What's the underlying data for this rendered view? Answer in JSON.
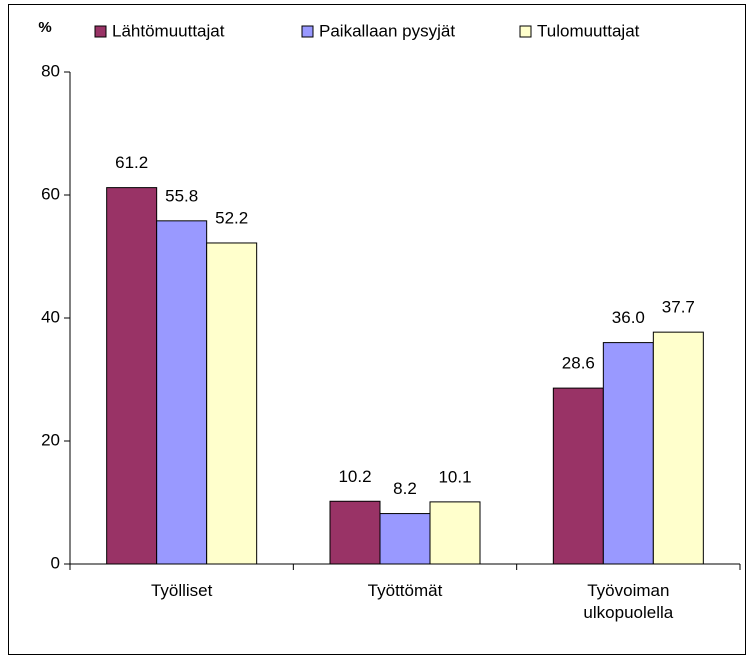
{
  "chart_data": {
    "type": "bar",
    "y_label": "%",
    "categories": [
      "Työlliset",
      "Työttömät",
      "Työvoiman ulkopuolella"
    ],
    "series": [
      {
        "name": "Lähtömuuttajat",
        "color": "#993366",
        "values": [
          61.2,
          10.2,
          28.6
        ],
        "value_labels": [
          "61.2",
          "10.2",
          "28.6"
        ]
      },
      {
        "name": "Paikallaan pysyjät",
        "color": "#9999ff",
        "values": [
          55.8,
          8.2,
          36.0
        ],
        "value_labels": [
          "55.8",
          "8.2",
          "36.0"
        ]
      },
      {
        "name": "Tulomuuttajat",
        "color": "#ffffcc",
        "values": [
          52.2,
          10.1,
          37.7
        ],
        "value_labels": [
          "52.2",
          "10.1",
          "37.7"
        ]
      }
    ],
    "ylim": [
      0,
      80
    ],
    "yticks": [
      0,
      20,
      40,
      60,
      80
    ],
    "grid": false,
    "legend": "top"
  }
}
